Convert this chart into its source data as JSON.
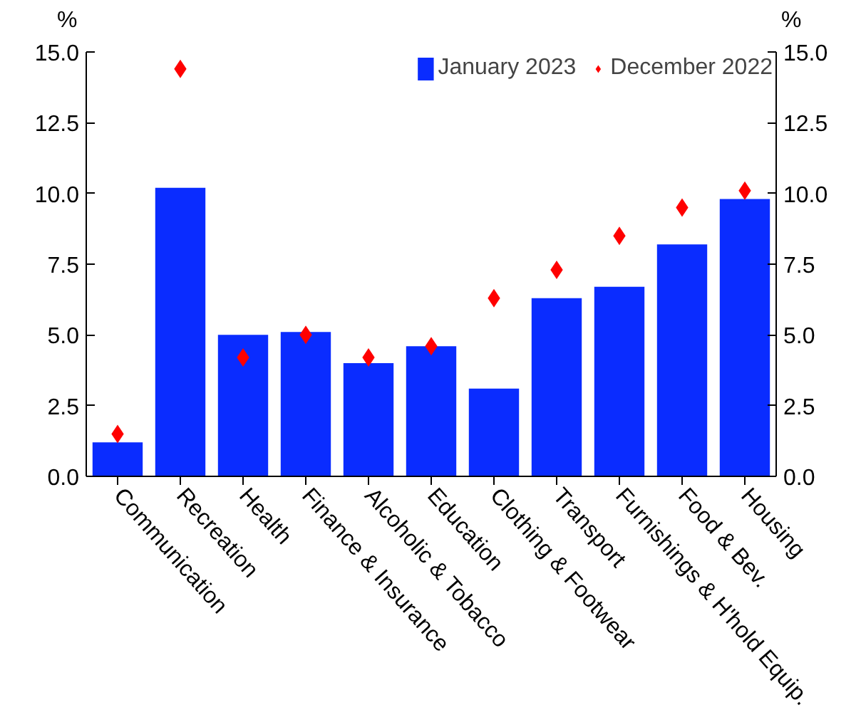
{
  "chart_data": {
    "type": "bar",
    "ylabel": "%",
    "y2label": "%",
    "categories": [
      "Communication",
      "Recreation",
      "Health",
      "Finance & Insurance",
      "Alcoholic & Tobacco",
      "Education",
      "Clothing & Footwear",
      "Transport",
      "Furnishings & H'hold Equip.",
      "Food & Bev.",
      "Housing"
    ],
    "series": [
      {
        "name": "January 2023",
        "color": "#0a2cff",
        "values": [
          1.2,
          10.2,
          5.0,
          5.1,
          4.0,
          4.6,
          3.1,
          6.3,
          6.7,
          8.2,
          9.8
        ]
      },
      {
        "name": "December 2022",
        "color": "#ff0000",
        "type": "scatter",
        "marker": "diamond",
        "values": [
          1.5,
          14.4,
          4.2,
          5.0,
          4.2,
          4.6,
          6.3,
          7.3,
          8.5,
          9.5,
          10.1
        ]
      }
    ],
    "ylim": [
      0,
      15
    ],
    "yticks": [
      {
        "value": 0,
        "label": "0.0"
      },
      2.5,
      {
        "value": 5,
        "label": "5.0"
      },
      7.5,
      {
        "value": 10,
        "label": "10.0"
      },
      12.5,
      {
        "value": 15,
        "label": "15.0"
      }
    ],
    "y2lim": [
      0,
      15
    ],
    "y2ticks": [
      {
        "value": 0,
        "label": "0.0"
      },
      2.5,
      {
        "value": 5,
        "label": "5.0"
      },
      7.5,
      {
        "value": 10,
        "label": "10.0"
      },
      12.5,
      {
        "value": 15,
        "label": "15.0"
      }
    ],
    "legend": "top right",
    "grid": false
  }
}
